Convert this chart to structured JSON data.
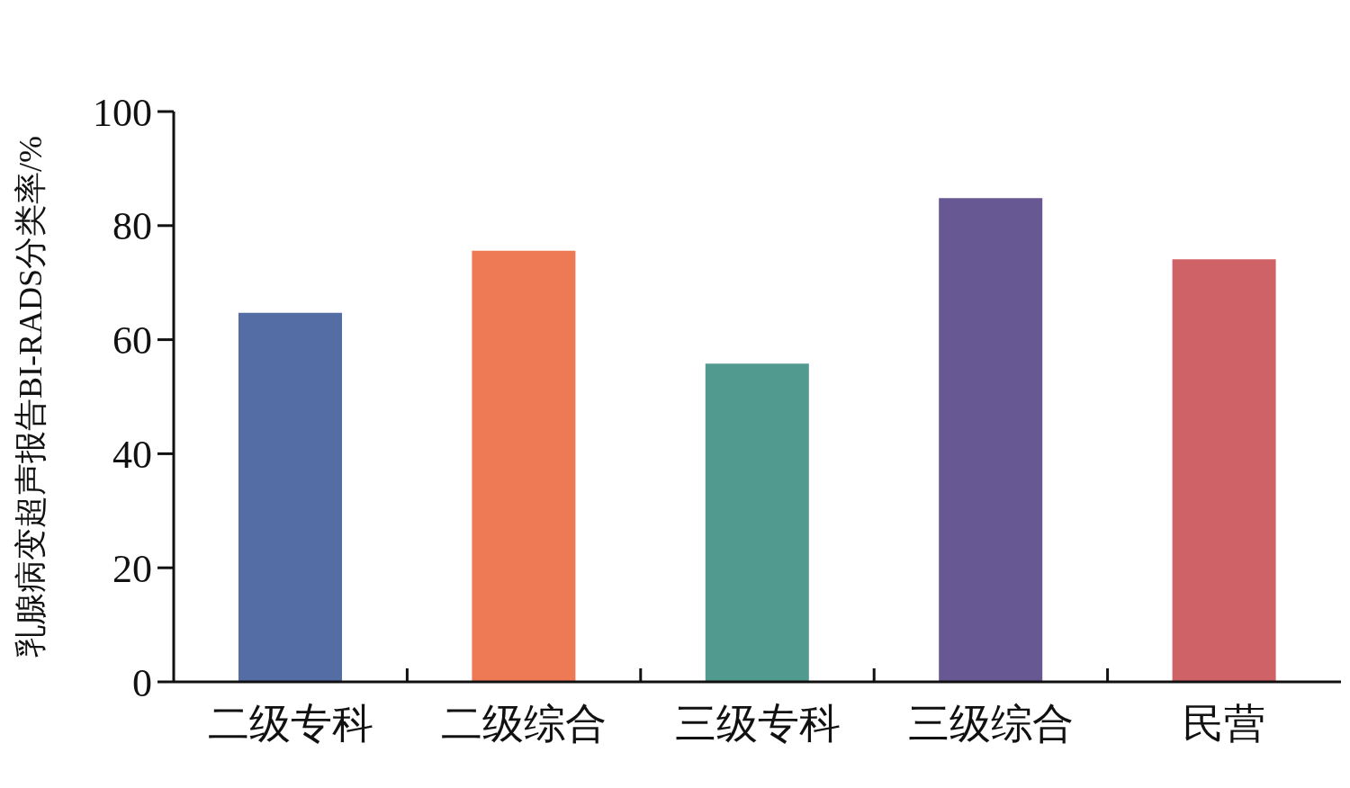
{
  "chart_data": {
    "type": "bar",
    "ylabel": "乳腺病变超声报告BI-RADS分类率/%",
    "categories": [
      "二级专科",
      "二级综合",
      "三级专科",
      "三级综合",
      "民营"
    ],
    "values": [
      64.7,
      75.6,
      55.8,
      84.8,
      74.1
    ],
    "colors": [
      "#546ea5",
      "#ee7955",
      "#519a8f",
      "#675793",
      "#cf6266"
    ],
    "ylim": [
      0,
      100
    ],
    "yticks": [
      0,
      20,
      40,
      60,
      80,
      100
    ],
    "grid": false,
    "legend": false
  }
}
